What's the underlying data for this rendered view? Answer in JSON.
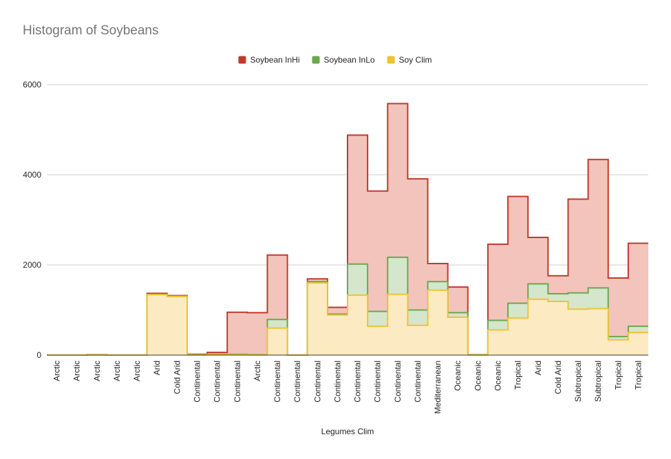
{
  "chart_data": {
    "type": "area",
    "step": true,
    "title": "Histogram of Soybeans",
    "xlabel": "Legumes Clim",
    "ylabel": "",
    "ylim": [
      0,
      6000
    ],
    "yticks": [
      0,
      2000,
      4000,
      6000
    ],
    "grid": true,
    "legend_position": "top",
    "categories": [
      "Arctic",
      "Arctic",
      "Arctic",
      "Arctic",
      "Arctic",
      "Arid",
      "Cold Arid",
      "Continental",
      "Continental",
      "Continental",
      "Arctic",
      "Continental",
      "Continental",
      "Continental",
      "Continental",
      "Continental",
      "Continental",
      "Continental",
      "Continental",
      "Mediterranean",
      "Oceanic",
      "Oceanic",
      "Oceanic",
      "Tropical",
      "Arid",
      "Cold Arid",
      "Subtropical",
      "Subtropical",
      "Tropical",
      "Tropical"
    ],
    "series": [
      {
        "name": "Soybean InHi",
        "color": "#c0392b",
        "fill": "#f2c4bc",
        "values": [
          0,
          0,
          10,
          0,
          0,
          1370,
          1320,
          20,
          60,
          950,
          940,
          2220,
          0,
          1690,
          1060,
          4880,
          3640,
          5580,
          3910,
          2030,
          1510,
          10,
          2460,
          3520,
          2610,
          1760,
          3460,
          4340,
          1710,
          2480
        ]
      },
      {
        "name": "Soybean InLo",
        "color": "#6aa84f",
        "fill": "#d4e6cc",
        "values": [
          0,
          0,
          5,
          0,
          0,
          1350,
          1310,
          10,
          20,
          20,
          10,
          790,
          0,
          1630,
          910,
          2020,
          970,
          2170,
          1000,
          1630,
          940,
          5,
          770,
          1150,
          1580,
          1360,
          1380,
          1490,
          410,
          640
        ]
      },
      {
        "name": "Soy Clim",
        "color": "#f1c232",
        "fill": "#fcebc2",
        "values": [
          0,
          0,
          5,
          0,
          0,
          1340,
          1300,
          5,
          10,
          10,
          5,
          600,
          0,
          1600,
          890,
          1330,
          640,
          1350,
          660,
          1440,
          840,
          5,
          560,
          820,
          1240,
          1190,
          1020,
          1030,
          340,
          500
        ]
      }
    ]
  }
}
